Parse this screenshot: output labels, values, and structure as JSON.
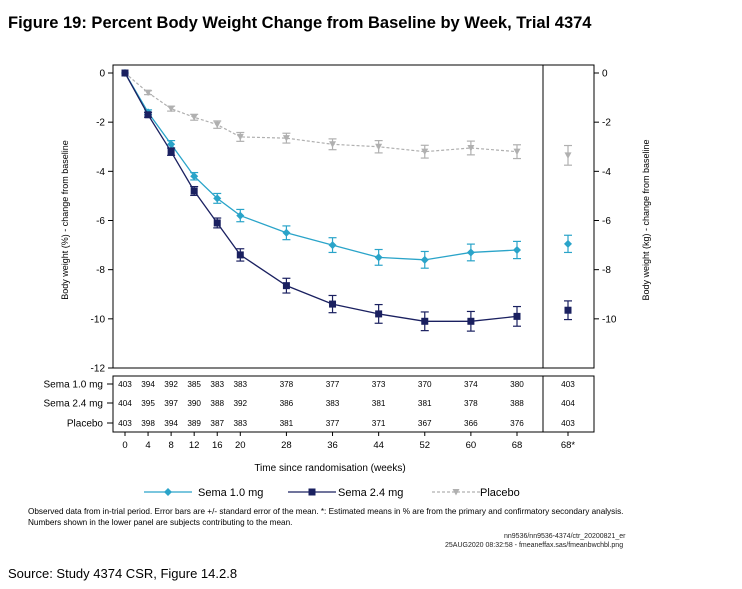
{
  "figure_title": "Figure 19:  Percent Body Weight Change from Baseline by Week, Trial 4374",
  "notes": "Observed data from in-trial period. Error bars are +/- standard error of the mean. *: Estimated means in % are from the primary and confirmatory secondary analysis. Numbers shown in the lower panel are subjects contributing to the mean.",
  "file_ref_1": "nn9536/nn9536-4374/ctr_20200821_er",
  "file_ref_2": "25AUG2020 08:32:58 - fmeaneffax.sas/fmeanbwchbl.png",
  "source": "Source: Study 4374 CSR, Figure 14.2.8",
  "colors": {
    "sema_1_0": "#2aa4c9",
    "sema_2_4": "#1a2060",
    "placebo": "#b0b0b0"
  },
  "chart_data": {
    "type": "line",
    "xlabel": "Time since randomisation (weeks)",
    "ylabel_left": "Body weight (%) - change from baseline",
    "ylabel_right": "Body weight (kg) - change from baseline",
    "x_ticks": [
      "0",
      "4",
      "8",
      "12",
      "16",
      "20",
      "28",
      "36",
      "44",
      "52",
      "60",
      "68",
      "68*"
    ],
    "x": [
      0,
      4,
      8,
      12,
      16,
      20,
      28,
      36,
      44,
      52,
      60,
      68
    ],
    "y_ticks_left": [
      "0",
      "-2",
      "-4",
      "-6",
      "-8",
      "-10",
      "-12"
    ],
    "ylim_left": [
      -12,
      0
    ],
    "y_ticks_right": [
      "0",
      "-2",
      "-4",
      "-6",
      "-8",
      "-10"
    ],
    "series": [
      {
        "name": "Sema 1.0 mg",
        "color": "#2aa4c9",
        "marker": "diamond",
        "values": [
          0,
          -1.6,
          -2.9,
          -4.2,
          -5.1,
          -5.8,
          -6.5,
          -7.0,
          -7.5,
          -7.6,
          -7.3,
          -7.2
        ],
        "se": [
          0,
          0.1,
          0.15,
          0.15,
          0.2,
          0.25,
          0.28,
          0.3,
          0.32,
          0.34,
          0.34,
          0.35
        ],
        "estimate_68": -6.95,
        "estimate_se": 0.35,
        "n": [
          "403",
          "394",
          "392",
          "385",
          "383",
          "383",
          "378",
          "377",
          "373",
          "370",
          "374",
          "380",
          "403"
        ]
      },
      {
        "name": "Sema 2.4 mg",
        "color": "#1a2060",
        "marker": "square",
        "values": [
          0,
          -1.7,
          -3.2,
          -4.8,
          -6.1,
          -7.4,
          -8.65,
          -9.4,
          -9.8,
          -10.1,
          -10.1,
          -9.9
        ],
        "se": [
          0,
          0.1,
          0.15,
          0.18,
          0.2,
          0.25,
          0.3,
          0.35,
          0.38,
          0.38,
          0.4,
          0.4
        ],
        "estimate_68": -9.65,
        "estimate_se": 0.38,
        "n": [
          "404",
          "395",
          "397",
          "390",
          "388",
          "392",
          "386",
          "383",
          "381",
          "381",
          "378",
          "388",
          "404"
        ]
      },
      {
        "name": "Placebo",
        "color": "#b0b0b0",
        "marker": "triangle-down",
        "values": [
          0,
          -0.8,
          -1.45,
          -1.8,
          -2.1,
          -2.6,
          -2.65,
          -2.9,
          -3.0,
          -3.2,
          -3.05,
          -3.2
        ],
        "se": [
          0,
          0.08,
          0.1,
          0.12,
          0.15,
          0.18,
          0.2,
          0.22,
          0.25,
          0.26,
          0.28,
          0.28
        ],
        "estimate_68": -3.35,
        "estimate_se": 0.4,
        "n": [
          "403",
          "398",
          "394",
          "389",
          "387",
          "383",
          "381",
          "377",
          "371",
          "367",
          "366",
          "376",
          "403"
        ]
      }
    ]
  }
}
